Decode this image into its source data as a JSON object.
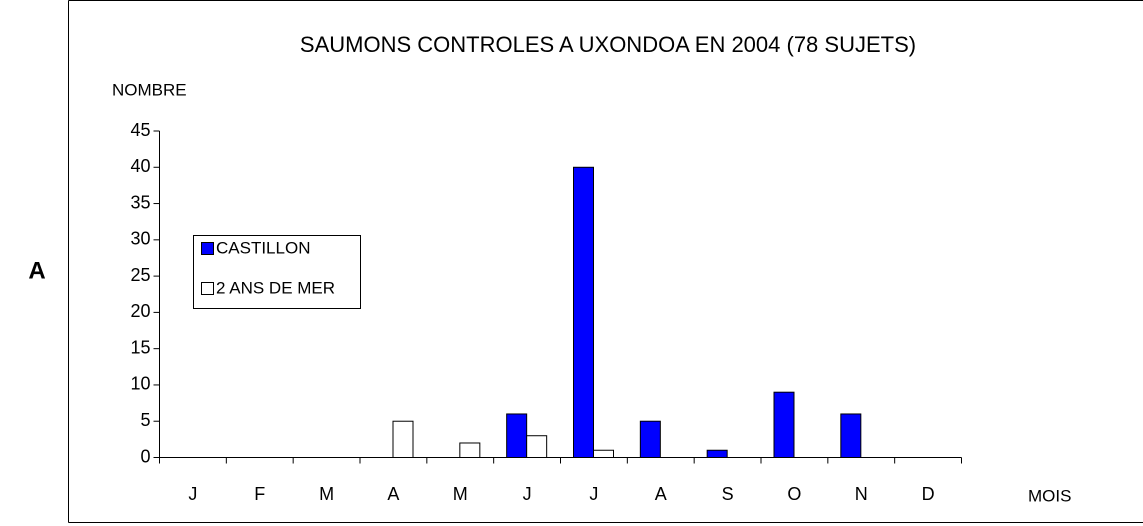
{
  "panel_label": "A",
  "chart_data": {
    "type": "bar",
    "title": "SAUMONS CONTROLES A UXONDOA EN 2004 (78 SUJETS)",
    "y_label": "NOMBRE",
    "x_label": "MOIS",
    "categories": [
      "J",
      "F",
      "M",
      "A",
      "M",
      "J",
      "J",
      "A",
      "S",
      "O",
      "N",
      "D"
    ],
    "series": [
      {
        "name": "CASTILLON",
        "color": "#0000ff",
        "values": [
          0,
          0,
          0,
          0,
          0,
          6,
          40,
          5,
          1,
          9,
          6,
          0
        ]
      },
      {
        "name": "2 ANS DE MER",
        "color": "#ffffff",
        "values": [
          0,
          0,
          0,
          5,
          2,
          3,
          1,
          0,
          0,
          0,
          0,
          0
        ]
      }
    ],
    "ylim": [
      0,
      45
    ],
    "yticks": [
      0,
      5,
      10,
      15,
      20,
      25,
      30,
      35,
      40,
      45
    ],
    "legend": "left"
  }
}
